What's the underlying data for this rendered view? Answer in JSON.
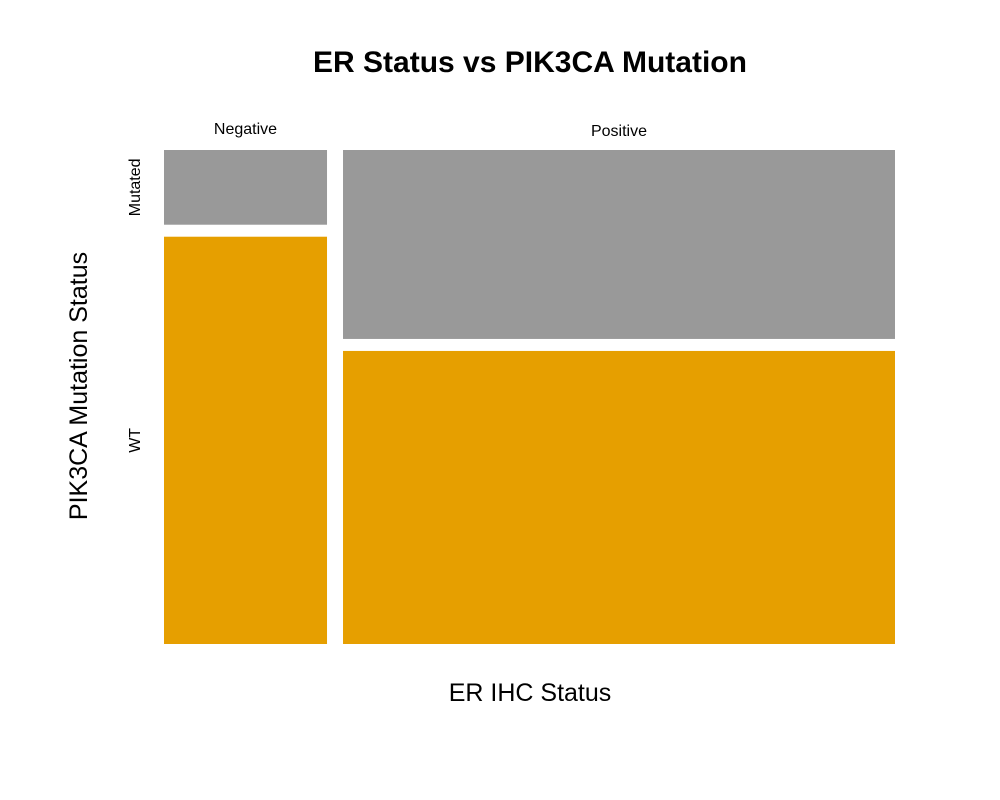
{
  "chart_data": {
    "type": "mosaic",
    "title": "ER Status vs PIK3CA Mutation",
    "xlabel": "ER IHC Status",
    "ylabel": "PIK3CA Mutation Status",
    "x_categories": [
      "Negative",
      "Positive"
    ],
    "y_categories": [
      "Mutated",
      "WT"
    ],
    "x_proportions": [
      0.228,
      0.772
    ],
    "y_proportions_within_x": [
      {
        "x": "Negative",
        "values": {
          "Mutated": 0.155,
          "WT": 0.845
        }
      },
      {
        "x": "Positive",
        "values": {
          "Mutated": 0.392,
          "WT": 0.608
        }
      }
    ],
    "colors": {
      "Mutated": "#999999",
      "WT": "#E69F00"
    },
    "legend": "none",
    "grid": false
  }
}
